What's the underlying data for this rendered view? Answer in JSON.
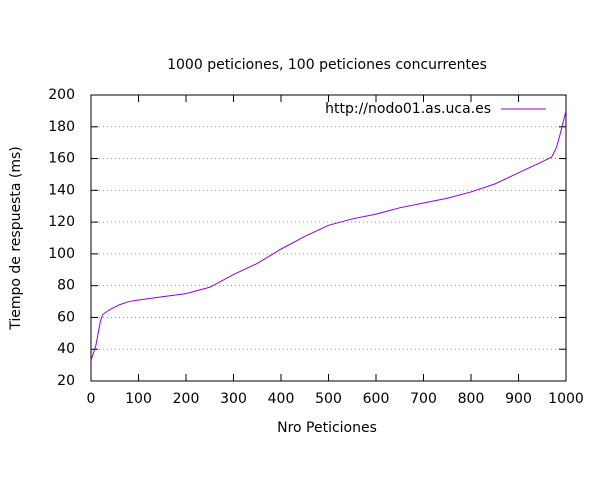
{
  "chart_data": {
    "type": "line",
    "title": "1000 peticiones, 100 peticiones concurrentes",
    "x_label": "Nro Peticiones",
    "y_label": "Tiempo de respuesta (ms)",
    "xlim": [
      0,
      1000
    ],
    "xticks": [
      0,
      100,
      200,
      300,
      400,
      500,
      600,
      700,
      800,
      900,
      1000
    ],
    "ylim": [
      20,
      200
    ],
    "yticks": [
      20,
      40,
      60,
      80,
      100,
      120,
      140,
      160,
      180,
      200
    ],
    "ygrid": true,
    "legend": "top-right",
    "x": [
      0,
      10,
      20,
      25,
      40,
      60,
      80,
      100,
      150,
      200,
      250,
      300,
      350,
      400,
      450,
      500,
      550,
      600,
      650,
      700,
      750,
      800,
      850,
      900,
      950,
      970,
      980,
      990,
      1000
    ],
    "series": [
      {
        "name": "http://nodo01.as.uca.es",
        "color": "#9400d3",
        "values": [
          33,
          42,
          58,
          62,
          65,
          68,
          70,
          71,
          73,
          75,
          79,
          87,
          94,
          103,
          111,
          118,
          122,
          125,
          129,
          132,
          135,
          139,
          144,
          151,
          158,
          161,
          167,
          178,
          190
        ]
      }
    ]
  }
}
